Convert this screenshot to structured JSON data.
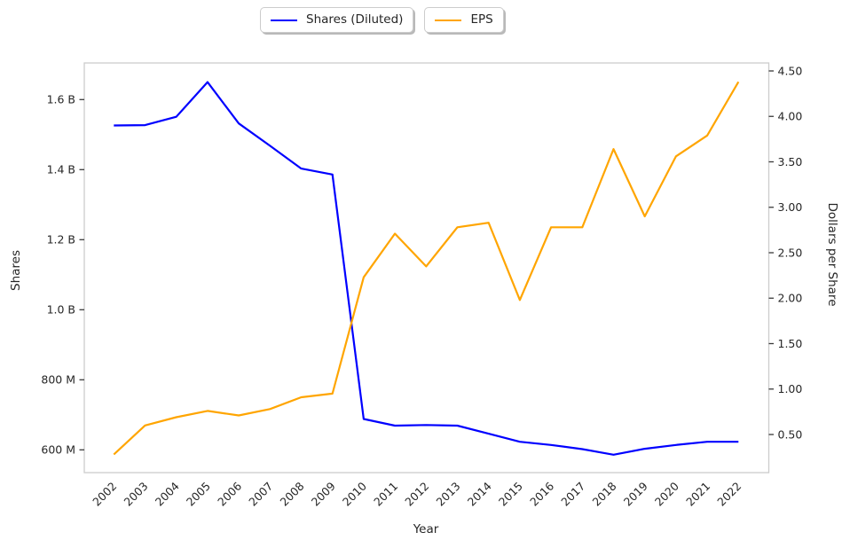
{
  "legend": {
    "items": [
      {
        "label": "Shares (Diluted)",
        "color": "#0000ff"
      },
      {
        "label": "EPS",
        "color": "#ffa500"
      }
    ]
  },
  "chart_data": {
    "type": "line",
    "title": "",
    "xlabel": "Year",
    "ylabel_left": "Shares",
    "ylabel_right": "Dollars per Share",
    "x": [
      2002,
      2003,
      2004,
      2005,
      2006,
      2007,
      2008,
      2009,
      2010,
      2011,
      2012,
      2013,
      2014,
      2015,
      2016,
      2017,
      2018,
      2019,
      2020,
      2021,
      2022
    ],
    "x_tick_labels": [
      "2002",
      "2003",
      "2004",
      "2005",
      "2006",
      "2007",
      "2008",
      "2009",
      "2010",
      "2011",
      "2012",
      "2013",
      "2014",
      "2015",
      "2016",
      "2017",
      "2018",
      "2019",
      "2020",
      "2021",
      "2022"
    ],
    "series": [
      {
        "name": "Shares (Diluted)",
        "axis": "left",
        "color": "#0000ff",
        "unit": "shares (millions)",
        "values_millions": [
          1526,
          1527,
          1551,
          1650,
          1532,
          1468,
          1403,
          1386,
          688,
          669,
          671,
          669,
          646,
          623,
          614,
          602,
          586,
          603,
          614,
          623,
          623
        ]
      },
      {
        "name": "EPS",
        "axis": "right",
        "color": "#ffa500",
        "unit": "dollars per share",
        "values": [
          0.28,
          0.6,
          0.69,
          0.76,
          0.71,
          0.78,
          0.91,
          0.95,
          2.23,
          2.71,
          2.35,
          2.78,
          2.83,
          1.98,
          2.78,
          2.78,
          3.64,
          2.9,
          3.56,
          3.79,
          4.38
        ]
      }
    ],
    "left_axis": {
      "tick_values_millions": [
        600,
        800,
        1000,
        1200,
        1400,
        1600
      ],
      "tick_labels": [
        "600 M",
        "800 M",
        "1.0 B",
        "1.2 B",
        "1.4 B",
        "1.6 B"
      ],
      "range_millions": [
        543,
        1705
      ]
    },
    "right_axis": {
      "tick_values": [
        0.5,
        1.0,
        1.5,
        2.0,
        2.5,
        3.0,
        3.5,
        4.0,
        4.5
      ],
      "tick_labels": [
        "0.50",
        "1.00",
        "1.50",
        "2.00",
        "2.50",
        "3.00",
        "3.50",
        "4.00",
        "4.50"
      ],
      "range": [
        0.11,
        4.59
      ]
    },
    "legend_position": "top-center",
    "grid": false
  }
}
